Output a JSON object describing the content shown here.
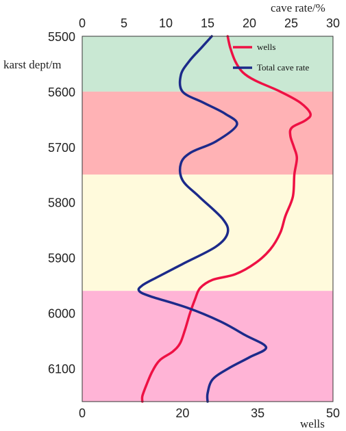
{
  "chart_data": {
    "type": "line",
    "y_axis": {
      "label": "karst dept/m",
      "range": [
        5500,
        6160
      ],
      "ticks": [
        5500,
        5600,
        5700,
        5800,
        5900,
        6000,
        6100
      ],
      "inverted": true
    },
    "top_axis": {
      "label": "cave rate/%",
      "range": [
        0,
        30
      ],
      "ticks": [
        0,
        5,
        10,
        15,
        20,
        25,
        30
      ]
    },
    "bottom_axis": {
      "label": "wells",
      "range": [
        0,
        50
      ],
      "ticks": [
        0,
        20,
        35,
        50
      ]
    },
    "bands": [
      {
        "from": 5500,
        "to": 5600,
        "color": "#c9e8d3"
      },
      {
        "from": 5600,
        "to": 5750,
        "color": "#ffb2b5"
      },
      {
        "from": 5750,
        "to": 5960,
        "color": "#fffadc"
      },
      {
        "from": 5960,
        "to": 6160,
        "color": "#ffb4d6"
      }
    ],
    "series": [
      {
        "name": "wells",
        "axis": "bottom",
        "color": "#ee1144",
        "points": [
          [
            5500,
            29
          ],
          [
            5520,
            29.5
          ],
          [
            5545,
            30.5
          ],
          [
            5565,
            32
          ],
          [
            5580,
            34.5
          ],
          [
            5600,
            39.5
          ],
          [
            5620,
            43.5
          ],
          [
            5640,
            45.5
          ],
          [
            5652,
            44.5
          ],
          [
            5665,
            41.8
          ],
          [
            5680,
            41.5
          ],
          [
            5700,
            42.2
          ],
          [
            5720,
            42.8
          ],
          [
            5750,
            42.3
          ],
          [
            5790,
            42.0
          ],
          [
            5825,
            40.5
          ],
          [
            5855,
            39.5
          ],
          [
            5885,
            37.5
          ],
          [
            5910,
            34.5
          ],
          [
            5930,
            30.5
          ],
          [
            5940,
            26
          ],
          [
            5955,
            23.5
          ],
          [
            5975,
            22.5
          ],
          [
            6000,
            21.5
          ],
          [
            6030,
            20.5
          ],
          [
            6055,
            19.5
          ],
          [
            6070,
            18
          ],
          [
            6085,
            15.5
          ],
          [
            6105,
            14
          ],
          [
            6130,
            12.8
          ],
          [
            6150,
            12
          ],
          [
            6160,
            12
          ]
        ]
      },
      {
        "name": "Total cave rate",
        "axis": "top",
        "color": "#1c2a8a",
        "points": [
          [
            5500,
            15.5
          ],
          [
            5520,
            14.3
          ],
          [
            5545,
            12.8
          ],
          [
            5570,
            11.8
          ],
          [
            5600,
            12.0
          ],
          [
            5620,
            14.5
          ],
          [
            5640,
            17.1
          ],
          [
            5660,
            18.5
          ],
          [
            5690,
            16.0
          ],
          [
            5710,
            13.0
          ],
          [
            5730,
            11.8
          ],
          [
            5760,
            12.0
          ],
          [
            5790,
            14.0
          ],
          [
            5830,
            16.8
          ],
          [
            5855,
            17.4
          ],
          [
            5880,
            16.0
          ],
          [
            5910,
            12.2
          ],
          [
            5935,
            9.0
          ],
          [
            5950,
            7.2
          ],
          [
            5960,
            6.8
          ],
          [
            5970,
            8.2
          ],
          [
            5990,
            12.5
          ],
          [
            6015,
            16.5
          ],
          [
            6040,
            19.5
          ],
          [
            6062,
            22.0
          ],
          [
            6080,
            20.0
          ],
          [
            6100,
            17.5
          ],
          [
            6120,
            15.6
          ],
          [
            6145,
            15.0
          ],
          [
            6160,
            15.0
          ]
        ]
      }
    ],
    "legend": {
      "placement": "top-right"
    },
    "grid": false
  }
}
